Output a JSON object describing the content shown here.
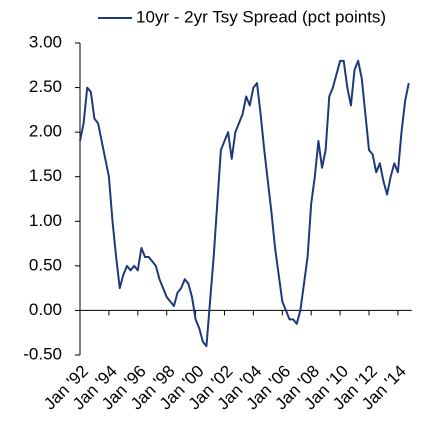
{
  "chart_data": {
    "type": "line",
    "categories": [
      "Jan '92",
      null,
      null,
      null,
      null,
      null,
      null,
      null,
      "Jan '94",
      null,
      null,
      null,
      null,
      null,
      null,
      null,
      "Jan '96",
      null,
      null,
      null,
      null,
      null,
      null,
      null,
      "Jan '98",
      null,
      null,
      null,
      null,
      null,
      null,
      null,
      "Jan '00",
      null,
      null,
      null,
      null,
      null,
      null,
      null,
      "Jan '02",
      null,
      null,
      null,
      null,
      null,
      null,
      null,
      "Jan '04",
      null,
      null,
      null,
      null,
      null,
      null,
      null,
      "Jan '06",
      null,
      null,
      null,
      null,
      null,
      null,
      null,
      "Jan '08",
      null,
      null,
      null,
      null,
      null,
      null,
      null,
      "Jan '10",
      null,
      null,
      null,
      null,
      null,
      null,
      null,
      "Jan '12",
      null,
      null,
      null,
      null,
      null,
      null,
      null,
      "Jan '14",
      null,
      null,
      null
    ],
    "series": [
      {
        "name": "10yr - 2yr Tsy Spread (pct points)",
        "color": "#1f3a7a",
        "values": [
          1.9,
          2.1,
          2.5,
          2.45,
          2.15,
          2.1,
          1.9,
          1.7,
          1.5,
          1.0,
          0.6,
          0.25,
          0.4,
          0.5,
          0.45,
          0.5,
          0.45,
          0.7,
          0.6,
          0.6,
          0.55,
          0.5,
          0.35,
          0.25,
          0.15,
          0.1,
          0.05,
          0.2,
          0.25,
          0.35,
          0.3,
          0.15,
          -0.1,
          -0.2,
          -0.35,
          -0.4,
          0.1,
          0.6,
          1.2,
          1.8,
          1.9,
          2.0,
          1.7,
          2.0,
          2.1,
          2.2,
          2.4,
          2.3,
          2.5,
          2.55,
          2.2,
          1.8,
          1.45,
          1.1,
          0.7,
          0.4,
          0.1,
          0.0,
          -0.1,
          -0.1,
          -0.15,
          0.0,
          0.3,
          0.6,
          1.2,
          1.5,
          1.9,
          1.6,
          1.8,
          2.4,
          2.5,
          2.65,
          2.8,
          2.8,
          2.5,
          2.3,
          2.7,
          2.8,
          2.6,
          2.2,
          1.8,
          1.75,
          1.55,
          1.65,
          1.45,
          1.3,
          1.5,
          1.65,
          1.55,
          2.0,
          2.35,
          2.55
        ]
      }
    ],
    "ylim": [
      -0.5,
      3.0
    ],
    "yticks": [
      {
        "value": -0.5,
        "label": "-0.50"
      },
      {
        "value": 0,
        "label": "0.00"
      },
      {
        "value": 0.5,
        "label": "0.50"
      },
      {
        "value": 1,
        "label": "1.00"
      },
      {
        "value": 1.5,
        "label": "1.50"
      },
      {
        "value": 2,
        "label": "2.00"
      },
      {
        "value": 2.5,
        "label": "2.50"
      },
      {
        "value": 3,
        "label": "3.00"
      }
    ],
    "legend": "top",
    "grid": false
  }
}
